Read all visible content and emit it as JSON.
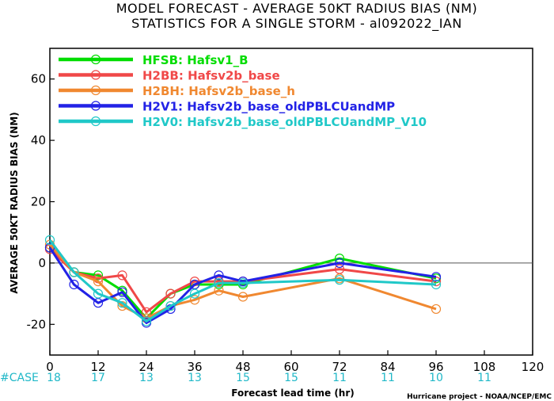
{
  "chart_data": {
    "type": "line",
    "title": "MODEL FORECAST - AVERAGE 50KT RADIUS BIAS (NM)",
    "subtitle": "STATISTICS FOR A SINGLE STORM - al092022_IAN",
    "xlabel": "Forecast lead time (hr)",
    "ylabel": "AVERAGE 50KT RADIUS BIAS (NM)",
    "xlim": [
      0,
      120
    ],
    "ylim": [
      -30,
      70
    ],
    "x_ticks": [
      0,
      12,
      24,
      36,
      48,
      60,
      72,
      84,
      96,
      108,
      120
    ],
    "y_ticks": [
      -20,
      0,
      20,
      40,
      60
    ],
    "zero_line": 0,
    "grid": false,
    "legend_position": "top-left",
    "series": [
      {
        "name": "HFSB: Hafsv1_B",
        "color": "#00dd00",
        "x": [
          0,
          6,
          12,
          18,
          24,
          30,
          36,
          42,
          48,
          72,
          96
        ],
        "y": [
          5,
          -3,
          -4,
          -9,
          -18,
          -10,
          -7,
          -7,
          -7,
          1.5,
          -5
        ]
      },
      {
        "name": "H2BB: Hafsv2b_base",
        "color": "#f04848",
        "x": [
          0,
          6,
          12,
          18,
          24,
          30,
          36,
          42,
          48,
          72,
          96
        ],
        "y": [
          4.5,
          -3,
          -5,
          -4,
          -16,
          -10,
          -6,
          -6,
          -6,
          -2,
          -6
        ]
      },
      {
        "name": "H2BH: Hafsv2b_base_h",
        "color": "#f08830",
        "x": [
          0,
          6,
          12,
          18,
          24,
          30,
          36,
          42,
          48,
          72,
          96
        ],
        "y": [
          6,
          -3,
          -6,
          -14,
          -18,
          -14,
          -12,
          -9,
          -11,
          -5,
          -15
        ]
      },
      {
        "name": "H2V1: Hafsv2b_base_oldPBLCUandMP",
        "color": "#2222e6",
        "x": [
          0,
          6,
          12,
          18,
          24,
          30,
          36,
          42,
          48,
          72,
          96
        ],
        "y": [
          5,
          -7,
          -13,
          -9.5,
          -19.5,
          -15,
          -7,
          -4,
          -6,
          0,
          -4.5
        ]
      },
      {
        "name": "H2V0: Hafsv2b_base_oldPBLCUandMP_V10",
        "color": "#20c8c8",
        "x": [
          0,
          6,
          12,
          18,
          24,
          30,
          36,
          42,
          48,
          72,
          96
        ],
        "y": [
          7.5,
          -3,
          -10,
          -13,
          -19,
          -14,
          -10,
          -6.5,
          -6.5,
          -5.5,
          -7
        ]
      }
    ],
    "case_label": "#CASE",
    "case_counts": [
      {
        "x": 0,
        "n": "18"
      },
      {
        "x": 12,
        "n": "17"
      },
      {
        "x": 24,
        "n": "13"
      },
      {
        "x": 36,
        "n": "13"
      },
      {
        "x": 48,
        "n": "15"
      },
      {
        "x": 60,
        "n": "15"
      },
      {
        "x": 72,
        "n": "11"
      },
      {
        "x": 84,
        "n": "11"
      },
      {
        "x": 96,
        "n": "10"
      },
      {
        "x": 108,
        "n": "11"
      }
    ],
    "case_color": "#20b8c8",
    "credit": "Hurricane project - NOAA/NCEP/EMC"
  }
}
